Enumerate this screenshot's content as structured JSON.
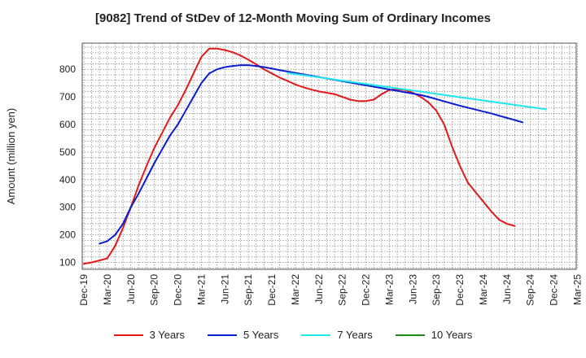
{
  "chart_data": {
    "type": "line",
    "title": "[9082]  Trend of StDev of 12-Month Moving Sum of Ordinary Incomes",
    "ylabel": "Amount (million yen)",
    "xlabel": "",
    "ylim": [
      75,
      895
    ],
    "yticks": [
      100,
      200,
      300,
      400,
      500,
      600,
      700,
      800
    ],
    "x_tick_labels": [
      "Dec-19",
      "Mar-20",
      "Jun-20",
      "Sep-20",
      "Dec-20",
      "Mar-21",
      "Jun-21",
      "Sep-21",
      "Dec-21",
      "Mar-22",
      "Jun-22",
      "Sep-22",
      "Dec-22",
      "Mar-23",
      "Jun-23",
      "Sep-23",
      "Dec-23",
      "Mar-24",
      "Jun-24",
      "Sep-24",
      "Dec-24",
      "Mar-25"
    ],
    "x_tick_count": 22,
    "grid": true,
    "legend_position": "bottom",
    "series": [
      {
        "name": "3 Years",
        "color": "#e31a1c",
        "start_month_index": 0,
        "values": [
          95,
          100,
          107,
          115,
          160,
          225,
          300,
          380,
          450,
          515,
          570,
          625,
          670,
          725,
          785,
          845,
          875,
          875,
          870,
          862,
          850,
          835,
          818,
          800,
          785,
          770,
          758,
          745,
          735,
          727,
          720,
          715,
          710,
          700,
          690,
          685,
          685,
          690,
          710,
          725,
          728,
          725,
          715,
          700,
          680,
          650,
          600,
          520,
          450,
          390,
          355,
          320,
          285,
          255,
          240,
          232
        ]
      },
      {
        "name": "5 Years",
        "color": "#0a1ecf",
        "start_month_index": 2,
        "values": [
          168,
          177,
          200,
          240,
          300,
          350,
          405,
          460,
          510,
          560,
          600,
          650,
          700,
          750,
          785,
          800,
          808,
          812,
          815,
          815,
          812,
          808,
          803,
          797,
          792,
          787,
          782,
          777,
          772,
          767,
          762,
          757,
          752,
          747,
          742,
          737,
          732,
          727,
          722,
          717,
          712,
          707,
          700,
          692,
          684,
          676,
          668,
          661,
          654,
          647,
          640,
          632,
          624,
          616,
          608
        ]
      },
      {
        "name": "7 Years",
        "color": "#1ee8ea",
        "start_month_index": 26,
        "values": [
          787,
          783,
          779,
          775,
          771,
          767,
          763,
          759,
          755,
          751,
          747,
          743,
          739,
          735,
          731,
          727,
          723,
          719,
          715,
          711,
          707,
          703,
          699,
          695,
          691,
          687,
          683,
          679,
          675,
          671,
          667,
          663,
          659,
          655
        ]
      },
      {
        "name": "10 Years",
        "color": "#1a8a1a",
        "start_month_index": 0,
        "values": []
      }
    ]
  }
}
